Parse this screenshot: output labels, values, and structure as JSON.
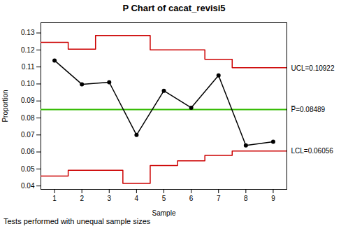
{
  "chart_data": {
    "type": "line",
    "title": "P Chart of cacat_revisi5",
    "xlabel": "Sample",
    "ylabel": "Proportion",
    "x": [
      1,
      2,
      3,
      4,
      5,
      6,
      7,
      8,
      9
    ],
    "values": [
      0.1138,
      0.0998,
      0.101,
      0.07,
      0.096,
      0.086,
      0.105,
      0.0638,
      0.066
    ],
    "color": "#000000",
    "marker": "circle",
    "center_line": {
      "value": 0.08489,
      "color": "#33bb00"
    },
    "ucl": {
      "x": [
        0.5,
        1.5,
        1.5,
        2.5,
        2.5,
        4.5,
        4.5,
        6.5,
        6.5,
        7.5,
        7.5,
        9.5
      ],
      "values": [
        0.1245,
        0.1245,
        0.1205,
        0.1205,
        0.1285,
        0.1285,
        0.12,
        0.12,
        0.1145,
        0.1145,
        0.1095,
        0.1095
      ],
      "color": "#cc0000"
    },
    "lcl": {
      "x": [
        0.5,
        1.5,
        1.5,
        3.5,
        3.5,
        4.5,
        4.5,
        5.5,
        5.5,
        6.5,
        6.5,
        7.5,
        7.5,
        9.5
      ],
      "values": [
        0.0458,
        0.0458,
        0.0492,
        0.0492,
        0.0415,
        0.0415,
        0.052,
        0.052,
        0.0548,
        0.0548,
        0.058,
        0.058,
        0.0605,
        0.0605
      ],
      "color": "#cc0000"
    },
    "limit_labels": [
      {
        "value": 0.10922,
        "label": "UCL=0.10922"
      },
      {
        "value": 0.08489,
        "label": "P̅=0.08489"
      },
      {
        "value": 0.06056,
        "label": "LCL=0.06056"
      }
    ],
    "footer": "Tests performed with unequal sample sizes",
    "xlim": [
      0.5,
      9.5
    ],
    "xticks": [
      1,
      2,
      3,
      4,
      5,
      6,
      7,
      8,
      9
    ],
    "ylim": [
      0.038,
      0.136
    ],
    "yticks": [
      0.04,
      0.05,
      0.06,
      0.07,
      0.08,
      0.09,
      {
        "value": 0.1,
        "label": "0.10"
      },
      0.11,
      0.12,
      0.13
    ],
    "grid": false
  }
}
